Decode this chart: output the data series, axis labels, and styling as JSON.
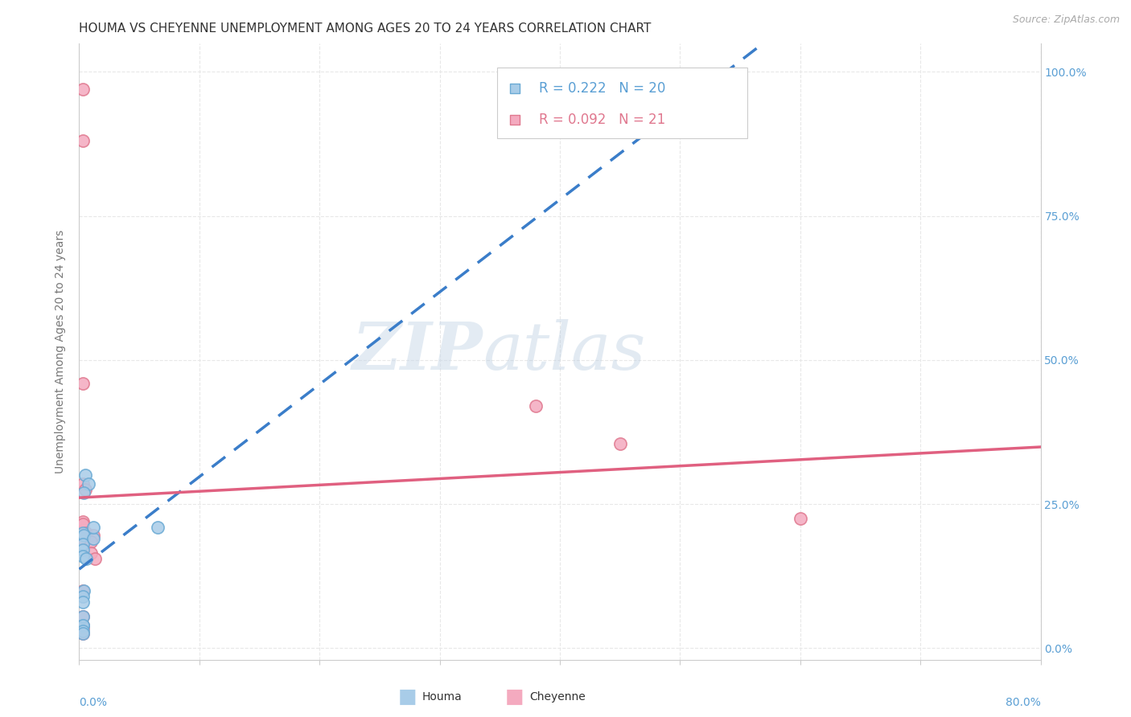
{
  "title": "HOUMA VS CHEYENNE UNEMPLOYMENT AMONG AGES 20 TO 24 YEARS CORRELATION CHART",
  "source": "Source: ZipAtlas.com",
  "ylabel": "Unemployment Among Ages 20 to 24 years",
  "houma_color": "#a8cce8",
  "houma_edge_color": "#6aaad4",
  "cheyenne_color": "#f4aabf",
  "cheyenne_edge_color": "#e0788f",
  "houma_line_color": "#3a7dc9",
  "cheyenne_line_color": "#e06080",
  "houma_R": 0.222,
  "houma_N": 20,
  "cheyenne_R": 0.092,
  "cheyenne_N": 21,
  "houma_x": [
    0.005,
    0.008,
    0.004,
    0.003,
    0.004,
    0.003,
    0.003,
    0.003,
    0.006,
    0.012,
    0.004,
    0.003,
    0.003,
    0.003,
    0.012,
    0.003,
    0.003,
    0.003,
    0.003,
    0.065
  ],
  "houma_y": [
    0.3,
    0.285,
    0.27,
    0.2,
    0.195,
    0.18,
    0.17,
    0.16,
    0.155,
    0.19,
    0.1,
    0.09,
    0.08,
    0.04,
    0.21,
    0.055,
    0.04,
    0.03,
    0.025,
    0.21
  ],
  "cheyenne_x": [
    0.003,
    0.005,
    0.003,
    0.003,
    0.006,
    0.012,
    0.003,
    0.01,
    0.01,
    0.013,
    0.003,
    0.003,
    0.003,
    0.003,
    0.003,
    0.003,
    0.45,
    0.6,
    0.003,
    0.003,
    0.38
  ],
  "cheyenne_y": [
    0.285,
    0.275,
    0.22,
    0.215,
    0.2,
    0.195,
    0.19,
    0.185,
    0.165,
    0.155,
    0.1,
    0.055,
    0.04,
    0.035,
    0.025,
    0.46,
    0.355,
    0.225,
    0.97,
    0.88,
    0.42
  ],
  "watermark_text": "ZIPatlas",
  "background_color": "#ffffff",
  "grid_color": "#e8e8e8",
  "ytick_values": [
    0.0,
    0.25,
    0.5,
    0.75,
    1.0
  ],
  "ytick_labels": [
    "0.0%",
    "25.0%",
    "50.0%",
    "75.0%",
    "100.0%"
  ],
  "xtick_values": [
    0.0,
    0.1,
    0.2,
    0.3,
    0.4,
    0.5,
    0.6,
    0.7,
    0.8
  ],
  "xlim": [
    0.0,
    0.8
  ],
  "ylim": [
    -0.02,
    1.05
  ],
  "marker_size": 120,
  "title_fontsize": 11,
  "tick_fontsize": 10,
  "legend_fontsize": 12,
  "tick_color": "#5a9fd4",
  "ylabel_color": "#777777"
}
